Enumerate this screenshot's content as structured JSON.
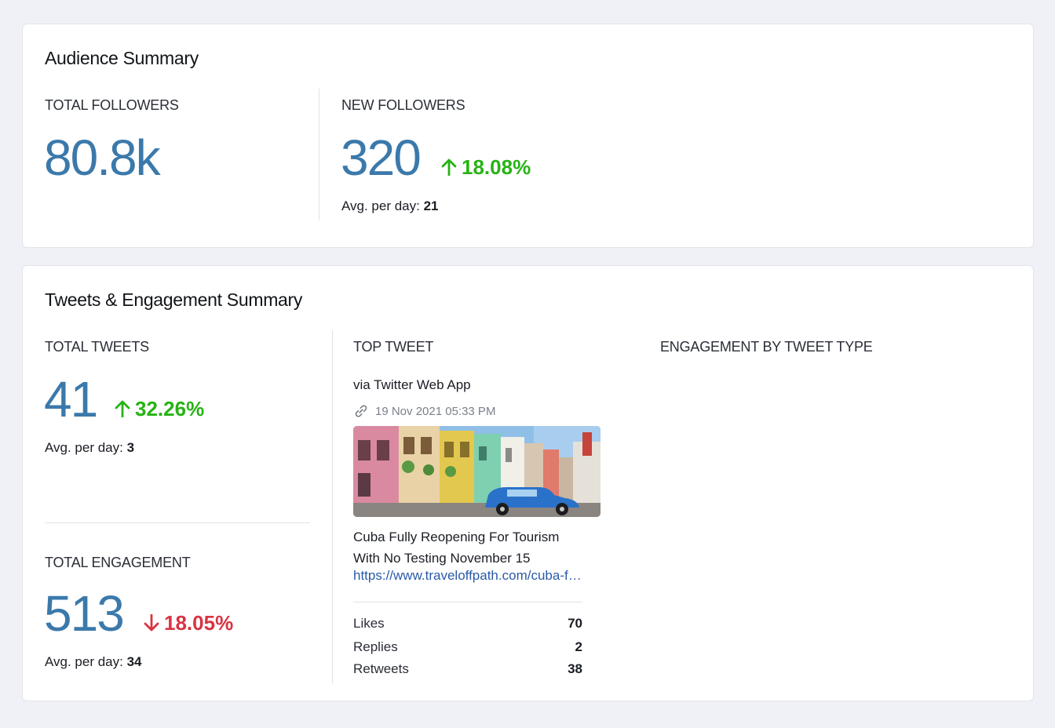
{
  "audience": {
    "title": "Audience Summary",
    "total_followers": {
      "label": "TOTAL FOLLOWERS",
      "value": "80.8k"
    },
    "new_followers": {
      "label": "NEW FOLLOWERS",
      "value": "320",
      "delta": "18.08%",
      "delta_direction": "up",
      "avg_label": "Avg. per day:",
      "avg_value": "21"
    }
  },
  "tweets": {
    "title": "Tweets & Engagement Summary",
    "total_tweets": {
      "label": "TOTAL TWEETS",
      "value": "41",
      "delta": "32.26%",
      "delta_direction": "up",
      "avg_label": "Avg. per day:",
      "avg_value": "3"
    },
    "total_engagement": {
      "label": "TOTAL ENGAGEMENT",
      "value": "513",
      "delta": "18.05%",
      "delta_direction": "down",
      "avg_label": "Avg. per day:",
      "avg_value": "34"
    },
    "top_tweet": {
      "label": "TOP TWEET",
      "source": "via Twitter Web App",
      "date": "19 Nov 2021 05:33 PM",
      "link_icon": "link-icon",
      "image_alt": "colorful street with vintage blue car",
      "text": "Cuba Fully Reopening For Tourism With No Testing November 15",
      "url": "https://www.traveloffpath.com/cuba-fully-reopening-for-tourism-with-no-testing-november-15/",
      "stats": [
        {
          "label": "Likes",
          "value": "70"
        },
        {
          "label": "Replies",
          "value": "2"
        },
        {
          "label": "Retweets",
          "value": "38"
        }
      ]
    },
    "engagement_by_type": {
      "label": "ENGAGEMENT BY TWEET TYPE"
    }
  },
  "colors": {
    "primary_number": "#3b79ab",
    "up": "#27b315",
    "down": "#d93442",
    "link": "#2a5aa8"
  }
}
